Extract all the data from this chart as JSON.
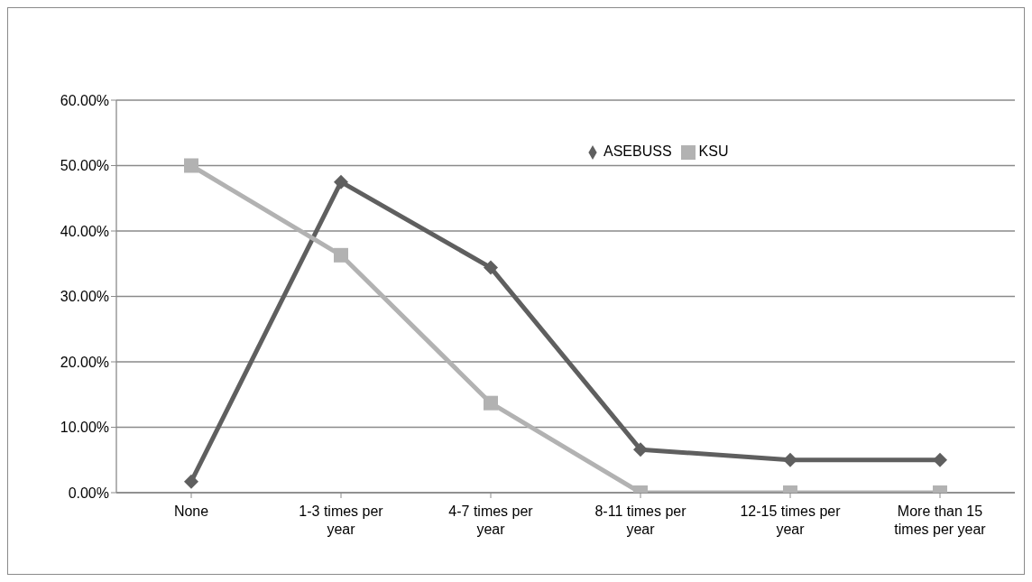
{
  "chart_data": {
    "type": "line",
    "categories": [
      "None",
      "1-3 times per year",
      "4-7 times per year",
      "8-11 times per year",
      "12-15 times per year",
      "More than 15 times per year"
    ],
    "series": [
      {
        "name": "ASEBUSS",
        "color": "#5f5f5f",
        "marker": "diamond",
        "values": [
          1.7,
          47.5,
          34.4,
          6.6,
          5.0,
          5.0
        ]
      },
      {
        "name": "KSU",
        "color": "#b2b2b2",
        "marker": "square",
        "values": [
          50,
          36.3,
          13.7,
          0,
          0,
          0
        ]
      }
    ],
    "ylim": [
      0,
      60
    ],
    "yticks": [
      {
        "value": 0,
        "label": "0.00%"
      },
      {
        "value": 10,
        "label": "10.00%"
      },
      {
        "value": 20,
        "label": "20.00%"
      },
      {
        "value": 30,
        "label": "30.00%"
      },
      {
        "value": 40,
        "label": "40.00%"
      },
      {
        "value": 50,
        "label": "50.00%"
      },
      {
        "value": 60,
        "label": "60.00%"
      }
    ],
    "grid": "y",
    "legend": "top right",
    "line_style": "solid"
  }
}
